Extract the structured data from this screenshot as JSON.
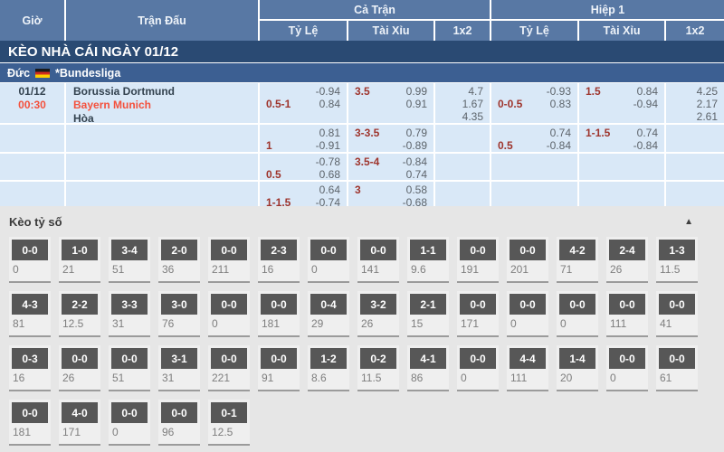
{
  "table_header": {
    "time": "Giờ",
    "match": "Trận Đấu",
    "full_time": "Cả Trận",
    "first_half": "Hiệp 1",
    "handicap": "Tỷ Lệ",
    "over_under": "Tài Xỉu",
    "one_x_two": "1x2"
  },
  "banner": {
    "title": "KÈO NHÀ CÁI NGÀY 01/12"
  },
  "league": {
    "country": "Đức",
    "flag": "germany-flag",
    "name": "*Bundesliga"
  },
  "match": {
    "date": "01/12",
    "time": "00:30",
    "home": "Borussia Dortmund",
    "away": "Bayern Munich",
    "draw": "Hòa"
  },
  "odds_rows": [
    {
      "ft_hdp": {
        "line": "0.5-1",
        "top": "-0.94",
        "bottom": "0.84"
      },
      "ft_ou": {
        "line": "3.5",
        "top": "0.99",
        "bottom": "0.91"
      },
      "ft_1x2": [
        "4.7",
        "1.67",
        "4.35"
      ],
      "h1_hdp": {
        "line": "0-0.5",
        "top": "-0.93",
        "bottom": "0.83"
      },
      "h1_ou": {
        "line": "1.5",
        "top": "0.84",
        "bottom": "-0.94"
      },
      "h1_1x2": [
        "4.25",
        "2.17",
        "2.61"
      ]
    },
    {
      "ft_hdp": {
        "line": "1",
        "top": "0.81",
        "bottom": "-0.91"
      },
      "ft_ou": {
        "line": "3-3.5",
        "top": "0.79",
        "bottom": "-0.89"
      },
      "ft_1x2": [],
      "h1_hdp": {
        "line": "0.5",
        "top": "0.74",
        "bottom": "-0.84"
      },
      "h1_ou": {
        "line": "1-1.5",
        "top": "0.74",
        "bottom": "-0.84"
      },
      "h1_1x2": []
    },
    {
      "ft_hdp": {
        "line": "0.5",
        "top": "-0.78",
        "bottom": "0.68"
      },
      "ft_ou": {
        "line": "3.5-4",
        "top": "-0.84",
        "bottom": "0.74"
      },
      "ft_1x2": [],
      "h1_hdp": {},
      "h1_ou": {},
      "h1_1x2": []
    },
    {
      "ft_hdp": {
        "line": "1-1.5",
        "top": "0.64",
        "bottom": "-0.74"
      },
      "ft_ou": {
        "line": "3",
        "top": "0.58",
        "bottom": "-0.68"
      },
      "ft_1x2": [],
      "h1_hdp": {},
      "h1_ou": {},
      "h1_1x2": []
    }
  ],
  "score_section": {
    "title": "Kèo tỷ số",
    "collapse_icon": "triangle-up",
    "rows": [
      [
        {
          "score": "0-0",
          "odds": "0"
        },
        {
          "score": "1-0",
          "odds": "21"
        },
        {
          "score": "3-4",
          "odds": "51"
        },
        {
          "score": "2-0",
          "odds": "36"
        },
        {
          "score": "0-0",
          "odds": "211"
        },
        {
          "score": "2-3",
          "odds": "16"
        },
        {
          "score": "0-0",
          "odds": "0"
        },
        {
          "score": "0-0",
          "odds": "141"
        },
        {
          "score": "1-1",
          "odds": "9.6"
        },
        {
          "score": "0-0",
          "odds": "191"
        },
        {
          "score": "0-0",
          "odds": "201"
        },
        {
          "score": "4-2",
          "odds": "71"
        },
        {
          "score": "2-4",
          "odds": "26"
        },
        {
          "score": "1-3",
          "odds": "11.5"
        }
      ],
      [
        {
          "score": "4-3",
          "odds": "81"
        },
        {
          "score": "2-2",
          "odds": "12.5"
        },
        {
          "score": "3-3",
          "odds": "31"
        },
        {
          "score": "3-0",
          "odds": "76"
        },
        {
          "score": "0-0",
          "odds": "0"
        },
        {
          "score": "0-0",
          "odds": "181"
        },
        {
          "score": "0-4",
          "odds": "29"
        },
        {
          "score": "3-2",
          "odds": "26"
        },
        {
          "score": "2-1",
          "odds": "15"
        },
        {
          "score": "0-0",
          "odds": "171"
        },
        {
          "score": "0-0",
          "odds": "0"
        },
        {
          "score": "0-0",
          "odds": "0"
        },
        {
          "score": "0-0",
          "odds": "111"
        },
        {
          "score": "0-0",
          "odds": "41"
        }
      ],
      [
        {
          "score": "0-3",
          "odds": "16"
        },
        {
          "score": "0-0",
          "odds": "26"
        },
        {
          "score": "0-0",
          "odds": "51"
        },
        {
          "score": "3-1",
          "odds": "31"
        },
        {
          "score": "0-0",
          "odds": "221"
        },
        {
          "score": "0-0",
          "odds": "91"
        },
        {
          "score": "1-2",
          "odds": "8.6"
        },
        {
          "score": "0-2",
          "odds": "11.5"
        },
        {
          "score": "4-1",
          "odds": "86"
        },
        {
          "score": "0-0",
          "odds": "0"
        },
        {
          "score": "4-4",
          "odds": "111"
        },
        {
          "score": "1-4",
          "odds": "20"
        },
        {
          "score": "0-0",
          "odds": "0"
        },
        {
          "score": "0-0",
          "odds": "61"
        }
      ],
      [
        {
          "score": "0-0",
          "odds": "181"
        },
        {
          "score": "4-0",
          "odds": "171"
        },
        {
          "score": "0-0",
          "odds": "0"
        },
        {
          "score": "0-0",
          "odds": "96"
        },
        {
          "score": "0-1",
          "odds": "12.5"
        }
      ]
    ]
  },
  "colors": {
    "header_blue": "#5878a4",
    "banner_navy": "#2a4a73",
    "league_blue": "#3c5f92",
    "row_blue": "#d9e8f7",
    "accent_red": "#f4513d",
    "line_red": "#9e342c",
    "chip_gray": "#575757"
  }
}
